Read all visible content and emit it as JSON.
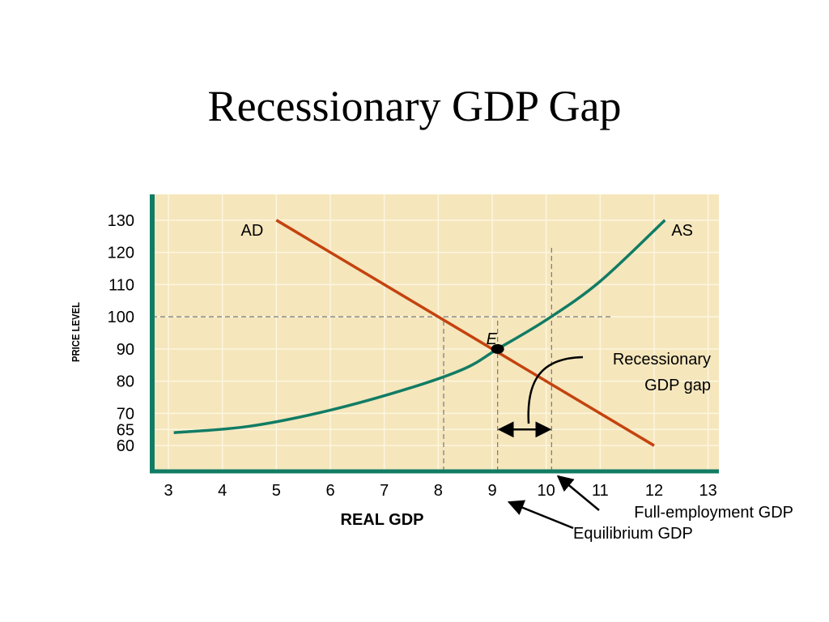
{
  "slide": {
    "title": "Recessionary GDP Gap"
  },
  "colors": {
    "plot_bg": "#f5e6bc",
    "grid": "#fdf6e0",
    "axis": "#117c64",
    "ad": "#c4430f",
    "as": "#117c64",
    "guide": "#777777"
  },
  "chart_data": {
    "type": "line",
    "title": "Recessionary GDP Gap",
    "xlabel": "REAL GDP",
    "ylabel": "PRICE LEVEL",
    "xlim": [
      2.7,
      13.2
    ],
    "ylim": [
      52,
      138
    ],
    "x_ticks": [
      3,
      4,
      5,
      6,
      7,
      8,
      9,
      10,
      11,
      12,
      13
    ],
    "y_ticks": [
      60,
      65,
      70,
      80,
      90,
      100,
      110,
      120,
      130
    ],
    "grid": true,
    "series": [
      {
        "name": "AD",
        "x": [
          5,
          12
        ],
        "y": [
          130,
          60
        ]
      },
      {
        "name": "AS",
        "x": [
          3.1,
          4.5,
          6,
          7.5,
          8.5,
          9.1,
          10,
          11,
          12.2
        ],
        "y": [
          64,
          66,
          71,
          78,
          84,
          90,
          99,
          111,
          130
        ]
      }
    ],
    "equilibrium": {
      "label": "E",
      "x": 9.1,
      "y": 90
    },
    "full_employment_price": 100,
    "reference_lines": [
      {
        "type": "horizontal",
        "y": 100
      },
      {
        "type": "vertical",
        "x": 8.1
      },
      {
        "type": "vertical",
        "x": 9.1
      },
      {
        "type": "vertical",
        "x": 10.1
      }
    ],
    "annotations": {
      "gap_label_line1": "Recessionary",
      "gap_label_line2": "GDP gap",
      "full_employment": "Full-employment GDP",
      "equilibrium": "Equilibrium GDP"
    }
  }
}
